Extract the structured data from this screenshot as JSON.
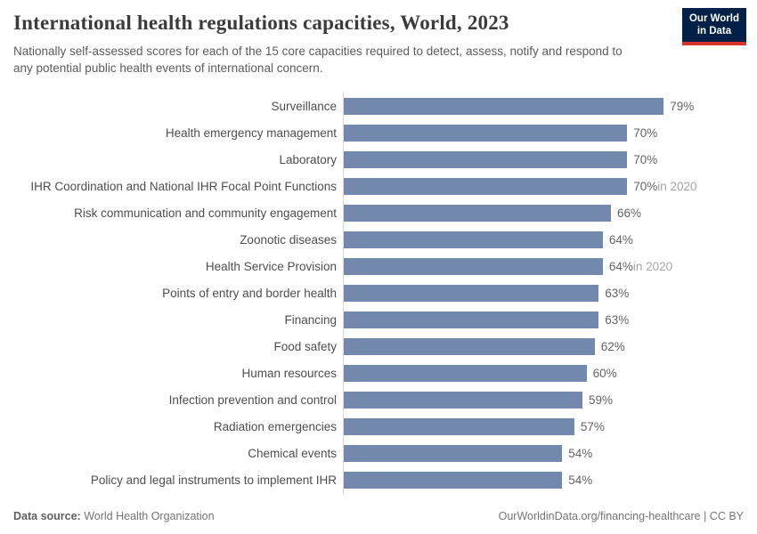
{
  "header": {
    "title": "International health regulations capacities, World, 2023",
    "subtitle": "Nationally self-assessed scores for each of the 15 core capacities required to detect, assess, notify and respond to any potential public health events of international concern.",
    "logo": {
      "line1": "Our World",
      "line2": "in Data",
      "bg_color": "#002147",
      "stripe_color": "#d7352c",
      "text_color": "#ffffff"
    }
  },
  "chart_data": {
    "type": "bar",
    "orientation": "horizontal",
    "title": "International health regulations capacities, World, 2023",
    "unit": "%",
    "xlim": [
      0,
      100
    ],
    "grid": false,
    "legend": false,
    "bar_color": "#7289ad",
    "categories": [
      "Surveillance",
      "Health emergency management",
      "Laboratory",
      "IHR Coordination and National IHR Focal Point Functions",
      "Risk communication and community engagement",
      "Zoonotic diseases",
      "Health Service Provision",
      "Points of entry and border health",
      "Financing",
      "Food safety",
      "Human resources",
      "Infection prevention and control",
      "Radiation emergencies",
      "Chemical events",
      "Policy and legal instruments to implement IHR"
    ],
    "values": [
      79,
      70,
      70,
      70,
      66,
      64,
      64,
      63,
      63,
      62,
      60,
      59,
      57,
      54,
      54
    ],
    "notes": [
      "",
      "",
      "",
      "in 2020",
      "",
      "",
      "in 2020",
      "",
      "",
      "",
      "",
      "",
      "",
      "",
      ""
    ]
  },
  "footer": {
    "datasource_label": "Data source:",
    "datasource_value": "World Health Organization",
    "url": "OurWorldinData.org/financing-healthcare",
    "separator": " | ",
    "license": "CC BY"
  }
}
